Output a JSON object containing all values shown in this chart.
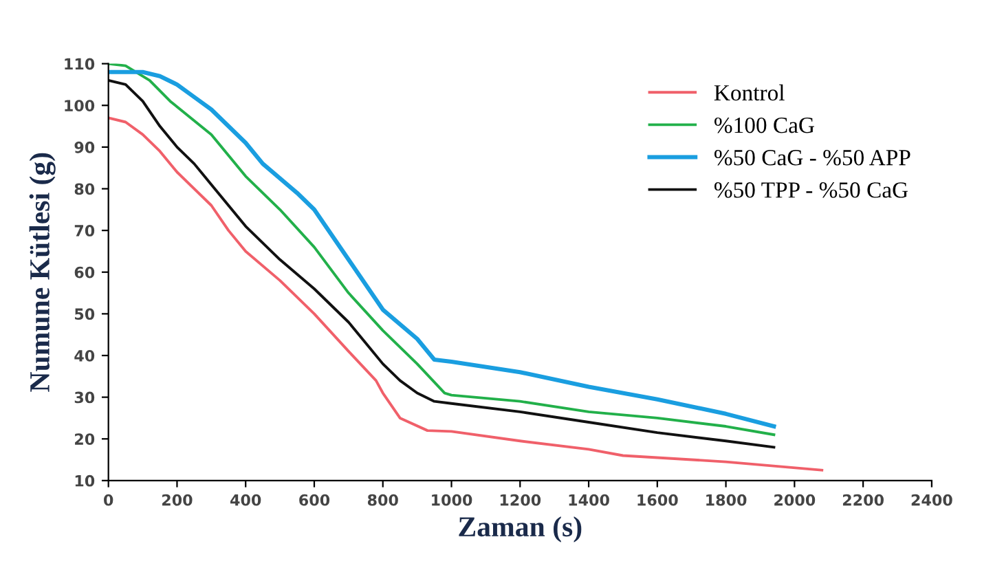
{
  "chart_data": {
    "type": "line",
    "xlabel": "Zaman (s)",
    "ylabel": "Numune Kütlesi (g)",
    "xlim": [
      0,
      2400
    ],
    "xticks": [
      0,
      200,
      400,
      600,
      800,
      1000,
      1200,
      1400,
      1600,
      1800,
      2000,
      2200,
      2400
    ],
    "ylim": [
      10,
      110
    ],
    "yticks": [
      10,
      20,
      30,
      40,
      50,
      60,
      70,
      80,
      90,
      100,
      110
    ],
    "grid": false,
    "legend": "top right",
    "marker": "none",
    "line_style": "solid",
    "series": [
      {
        "name": "Kontrol",
        "color": "#f0606a",
        "x": [
          0,
          50,
          100,
          150,
          200,
          300,
          350,
          400,
          500,
          600,
          700,
          780,
          800,
          850,
          930,
          1000,
          1200,
          1400,
          1500,
          1800,
          2080
        ],
        "values": [
          97,
          96,
          93,
          89,
          84,
          76,
          70,
          65,
          58,
          50,
          41,
          34,
          31,
          25,
          22,
          21.8,
          19.5,
          17.5,
          16,
          14.5,
          12.5
        ]
      },
      {
        "name": "%100 CaG",
        "color": "#22b04a",
        "x": [
          0,
          50,
          120,
          180,
          300,
          400,
          500,
          600,
          700,
          800,
          900,
          980,
          1000,
          1200,
          1400,
          1600,
          1800,
          1940
        ],
        "values": [
          110,
          109.5,
          106,
          101,
          93,
          83,
          75,
          66,
          55,
          46,
          38,
          31,
          30.5,
          29,
          26.5,
          25,
          23,
          21
        ]
      },
      {
        "name": "%50 CaG - %50 APP",
        "color": "#1a9ee0",
        "x": [
          0,
          100,
          150,
          200,
          250,
          300,
          400,
          450,
          550,
          600,
          700,
          800,
          900,
          950,
          1000,
          1200,
          1400,
          1600,
          1800,
          1940
        ],
        "values": [
          108,
          108,
          107,
          105,
          102,
          99,
          91,
          86,
          79,
          75,
          63,
          51,
          44,
          39,
          38.5,
          36,
          32.5,
          29.5,
          26,
          23
        ]
      },
      {
        "name": "%50 TPP - %50 CaG",
        "color": "#111111",
        "x": [
          0,
          50,
          100,
          150,
          200,
          250,
          300,
          400,
          500,
          600,
          700,
          800,
          850,
          900,
          950,
          1000,
          1200,
          1400,
          1600,
          1800,
          1940
        ],
        "values": [
          106,
          105,
          101,
          95,
          90,
          86,
          81,
          71,
          63,
          56,
          48,
          38,
          34,
          31,
          29,
          28.5,
          26.5,
          24,
          21.5,
          19.5,
          18
        ]
      }
    ]
  }
}
